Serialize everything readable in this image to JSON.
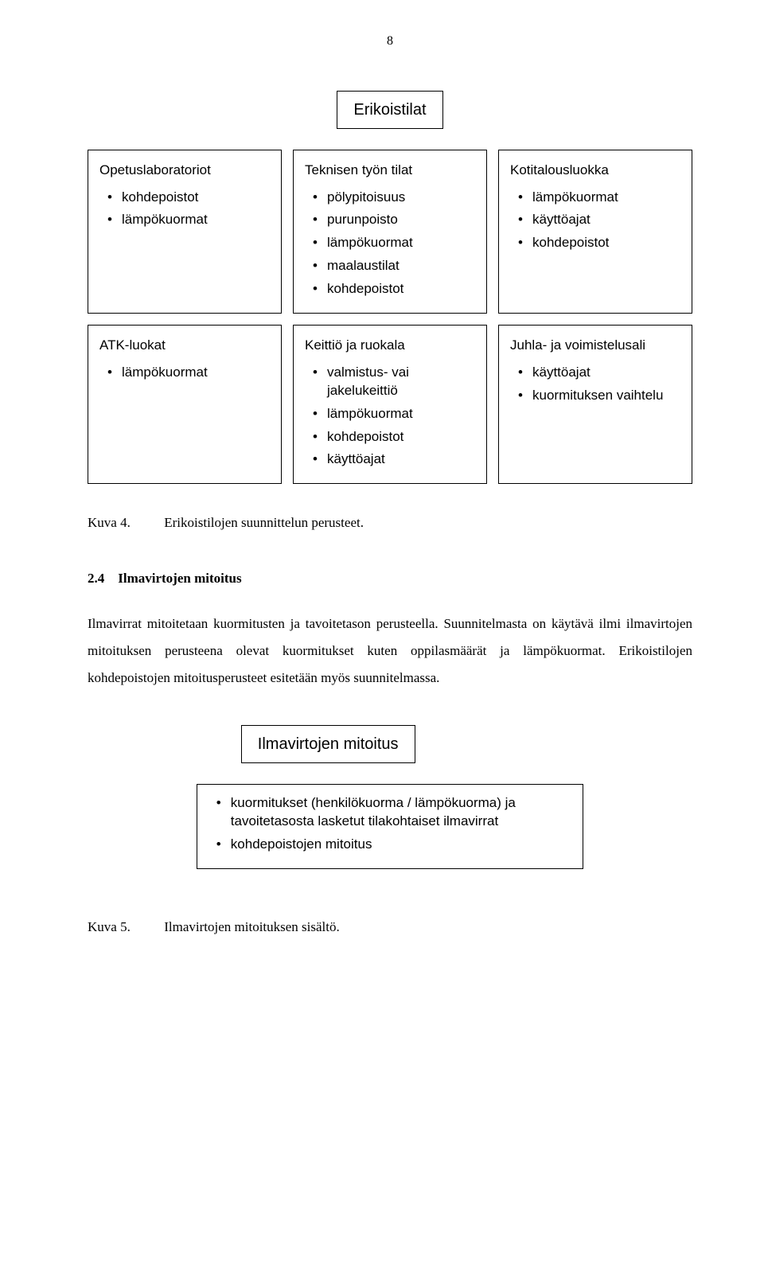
{
  "page_number": "8",
  "diagram1": {
    "title": "Erikoistilat",
    "row1": {
      "card1": {
        "title": "Opetuslaboratoriot",
        "items": [
          "kohdepoistot",
          "lämpökuormat"
        ]
      },
      "card2": {
        "title": "Teknisen työn tilat",
        "items": [
          "pölypitoisuus",
          "purunpoisto",
          "lämpökuormat",
          "maalaustilat",
          "kohdepoistot"
        ]
      },
      "card3": {
        "title": "Kotitalousluokka",
        "items": [
          "lämpökuormat",
          "käyttöajat",
          "kohdepoistot"
        ]
      }
    },
    "row2": {
      "card1": {
        "title": "ATK-luokat",
        "items": [
          "lämpökuormat"
        ]
      },
      "card2": {
        "title": "Keittiö ja ruokala",
        "items": [
          "valmistus- vai jakelukeittiö",
          "lämpökuormat",
          "kohdepoistot",
          "käyttöajat"
        ]
      },
      "card3": {
        "title": "Juhla- ja voimistelusali",
        "items": [
          "käyttöajat",
          "kuormituksen vaihtelu"
        ]
      }
    }
  },
  "caption1": {
    "label": "Kuva 4.",
    "text": "Erikoistilojen suunnittelun perusteet."
  },
  "section": {
    "number": "2.4",
    "title": "Ilmavirtojen mitoitus"
  },
  "paragraph": "Ilmavirrat mitoitetaan kuormitusten ja tavoitetason perusteella. Suunnitelmasta on käytävä ilmi ilmavirtojen mitoituksen perusteena olevat kuormitukset kuten oppilasmäärät ja lämpökuormat. Erikoistilojen kohdepoistojen mitoitusperusteet esitetään myös suunnitelmassa.",
  "diagram2": {
    "title": "Ilmavirtojen mitoitus",
    "items": [
      "kuormitukset (henkilökuorma / lämpökuorma) ja tavoitetasosta lasketut tilakohtaiset ilmavirrat",
      "kohdepoistojen mitoitus"
    ]
  },
  "caption2": {
    "label": "Kuva 5.",
    "text": "Ilmavirtojen mitoituksen sisältö."
  }
}
